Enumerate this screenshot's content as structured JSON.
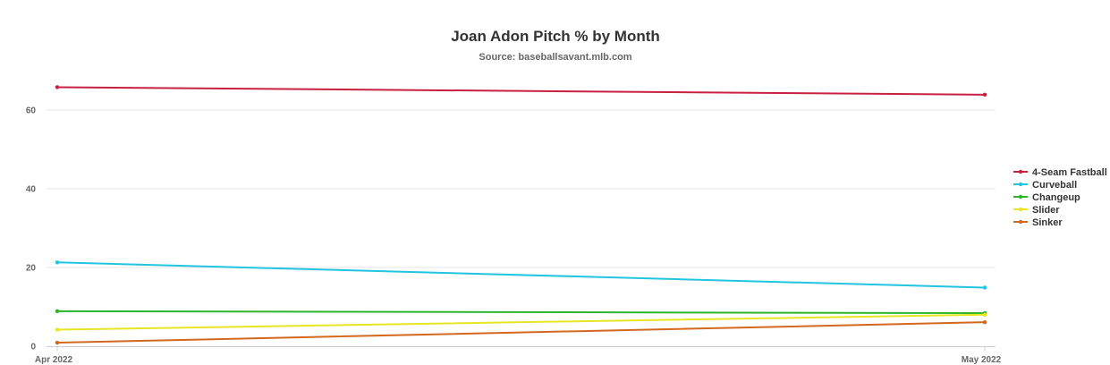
{
  "chart_data": {
    "type": "line",
    "title": "Joan Adon Pitch % by Month",
    "subtitle": "Source: baseballsavant.mlb.com",
    "xlabel": "",
    "ylabel": "",
    "categories": [
      "Apr 2022",
      "May 2022"
    ],
    "ylim": [
      0,
      70
    ],
    "yticks": [
      0,
      20,
      40,
      60
    ],
    "grid": true,
    "legend_position": "right",
    "series": [
      {
        "name": "4-Seam Fastball",
        "color": "#c8213f",
        "values": [
          65.8,
          63.9
        ]
      },
      {
        "name": "Curveball",
        "color": "#21c5e0",
        "values": [
          21.3,
          14.9
        ]
      },
      {
        "name": "Changeup",
        "color": "#2bb52b",
        "values": [
          8.9,
          8.4
        ]
      },
      {
        "name": "Slider",
        "color": "#e6e623",
        "values": [
          4.2,
          8.0
        ]
      },
      {
        "name": "Sinker",
        "color": "#d2691e",
        "values": [
          0.9,
          6.1
        ]
      }
    ]
  }
}
